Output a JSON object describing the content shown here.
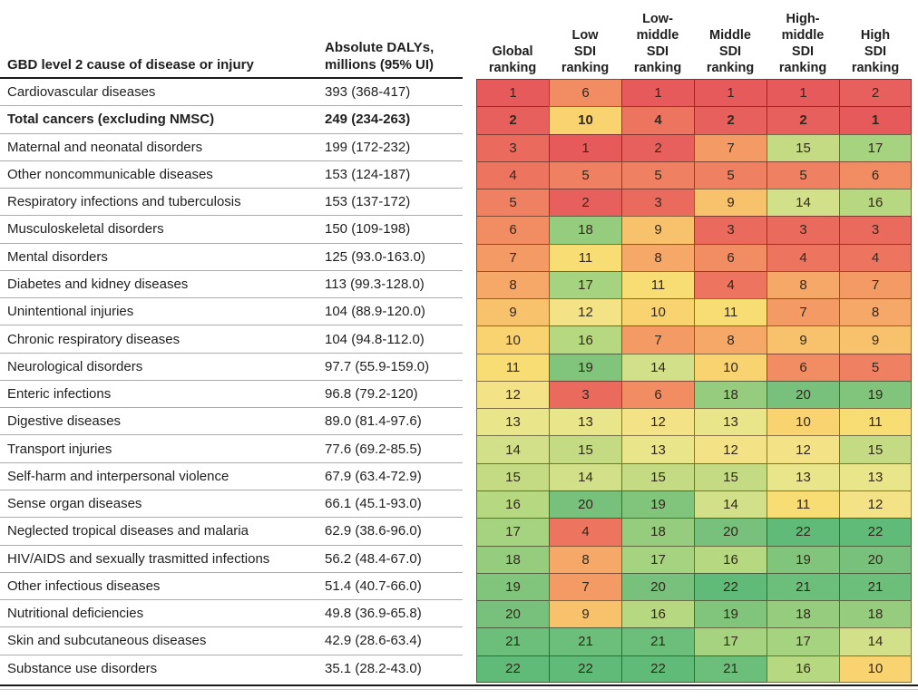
{
  "table": {
    "cause_header": "GBD level 2 cause of disease or injury",
    "dalys_header": "Absolute DALYs,\nmillions (95% UI)",
    "rank_headers": [
      "Global\nranking",
      "Low\nSDI\nranking",
      "Low-\nmiddle\nSDI\nranking",
      "Middle\nSDI\nranking",
      "High-\nmiddle\nSDI\nranking",
      "High\nSDI\nranking"
    ]
  },
  "colors": {
    "rule_dark": "#1a1a1a",
    "row_divider": "#ababab",
    "rule_light": "#c9c9c9",
    "cell_border": "rgba(44,20,10,0.55)",
    "cell_text": "#33281c",
    "rank_scale": {
      "1": "#e65a5c",
      "2": "#e7605d",
      "3": "#ea6a5e",
      "4": "#ed755f",
      "5": "#ef8061",
      "6": "#f18c63",
      "7": "#f49a64",
      "8": "#f6a868",
      "9": "#f8c16c",
      "10": "#f9d36f",
      "11": "#f8dd75",
      "12": "#f4e286",
      "13": "#e9e58a",
      "14": "#d3e08a",
      "15": "#c4db84",
      "16": "#b5d880",
      "17": "#a6d37f",
      "18": "#95cc7d",
      "19": "#80c57b",
      "20": "#77c17c",
      "21": "#6cbe7b",
      "22": "#60ba78"
    }
  },
  "chart_data": {
    "type": "heatmap",
    "title": "",
    "columns": [
      "Global ranking",
      "Low SDI ranking",
      "Low-middle SDI ranking",
      "Middle SDI ranking",
      "High-middle SDI ranking",
      "High SDI ranking"
    ],
    "value_range": [
      1,
      22
    ],
    "legend_position": "none",
    "rows": [
      {
        "cause": "Cardiovascular diseases",
        "dalys": "393 (368-417)",
        "ranks": [
          1,
          6,
          1,
          1,
          1,
          2
        ],
        "bold": false
      },
      {
        "cause": "Total cancers (excluding NMSC)",
        "dalys": "249 (234-263)",
        "ranks": [
          2,
          10,
          4,
          2,
          2,
          1
        ],
        "bold": true
      },
      {
        "cause": "Maternal and neonatal disorders",
        "dalys": "199 (172-232)",
        "ranks": [
          3,
          1,
          2,
          7,
          15,
          17
        ],
        "bold": false
      },
      {
        "cause": "Other noncommunicable diseases",
        "dalys": "153 (124-187)",
        "ranks": [
          4,
          5,
          5,
          5,
          5,
          6
        ],
        "bold": false
      },
      {
        "cause": "Respiratory infections and tuberculosis",
        "dalys": "153 (137-172)",
        "ranks": [
          5,
          2,
          3,
          9,
          14,
          16
        ],
        "bold": false
      },
      {
        "cause": "Musculoskeletal disorders",
        "dalys": "150 (109-198)",
        "ranks": [
          6,
          18,
          9,
          3,
          3,
          3
        ],
        "bold": false
      },
      {
        "cause": "Mental disorders",
        "dalys": "125 (93.0-163.0)",
        "ranks": [
          7,
          11,
          8,
          6,
          4,
          4
        ],
        "bold": false
      },
      {
        "cause": "Diabetes and kidney diseases",
        "dalys": "113 (99.3-128.0)",
        "ranks": [
          8,
          17,
          11,
          4,
          8,
          7
        ],
        "bold": false
      },
      {
        "cause": "Unintentional injuries",
        "dalys": "104 (88.9-120.0)",
        "ranks": [
          9,
          12,
          10,
          11,
          7,
          8
        ],
        "bold": false
      },
      {
        "cause": "Chronic respiratory diseases",
        "dalys": "104 (94.8-112.0)",
        "ranks": [
          10,
          16,
          7,
          8,
          9,
          9
        ],
        "bold": false
      },
      {
        "cause": "Neurological disorders",
        "dalys": "97.7 (55.9-159.0)",
        "ranks": [
          11,
          19,
          14,
          10,
          6,
          5
        ],
        "bold": false
      },
      {
        "cause": "Enteric infections",
        "dalys": "96.8 (79.2-120)",
        "ranks": [
          12,
          3,
          6,
          18,
          20,
          19
        ],
        "bold": false
      },
      {
        "cause": "Digestive diseases",
        "dalys": "89.0 (81.4-97.6)",
        "ranks": [
          13,
          13,
          12,
          13,
          10,
          11
        ],
        "bold": false
      },
      {
        "cause": "Transport injuries",
        "dalys": "77.6 (69.2-85.5)",
        "ranks": [
          14,
          15,
          13,
          12,
          12,
          15
        ],
        "bold": false
      },
      {
        "cause": "Self-harm and interpersonal violence",
        "dalys": "67.9 (63.4-72.9)",
        "ranks": [
          15,
          14,
          15,
          15,
          13,
          13
        ],
        "bold": false
      },
      {
        "cause": "Sense organ diseases",
        "dalys": "66.1 (45.1-93.0)",
        "ranks": [
          16,
          20,
          19,
          14,
          11,
          12
        ],
        "bold": false
      },
      {
        "cause": "Neglected tropical diseases and malaria",
        "dalys": "62.9 (38.6-96.0)",
        "ranks": [
          17,
          4,
          18,
          20,
          22,
          22
        ],
        "bold": false
      },
      {
        "cause": "HIV/AIDS and sexually trasmitted infections",
        "dalys": "56.2 (48.4-67.0)",
        "ranks": [
          18,
          8,
          17,
          16,
          19,
          20
        ],
        "bold": false
      },
      {
        "cause": "Other infectious diseases",
        "dalys": "51.4 (40.7-66.0)",
        "ranks": [
          19,
          7,
          20,
          22,
          21,
          21
        ],
        "bold": false
      },
      {
        "cause": "Nutritional deficiencies",
        "dalys": "49.8 (36.9-65.8)",
        "ranks": [
          20,
          9,
          16,
          19,
          18,
          18
        ],
        "bold": false
      },
      {
        "cause": "Skin and subcutaneous diseases",
        "dalys": "42.9 (28.6-63.4)",
        "ranks": [
          21,
          21,
          21,
          17,
          17,
          14
        ],
        "bold": false
      },
      {
        "cause": "Substance use disorders",
        "dalys": "35.1 (28.2-43.0)",
        "ranks": [
          22,
          22,
          22,
          21,
          16,
          10
        ],
        "bold": false
      }
    ]
  }
}
